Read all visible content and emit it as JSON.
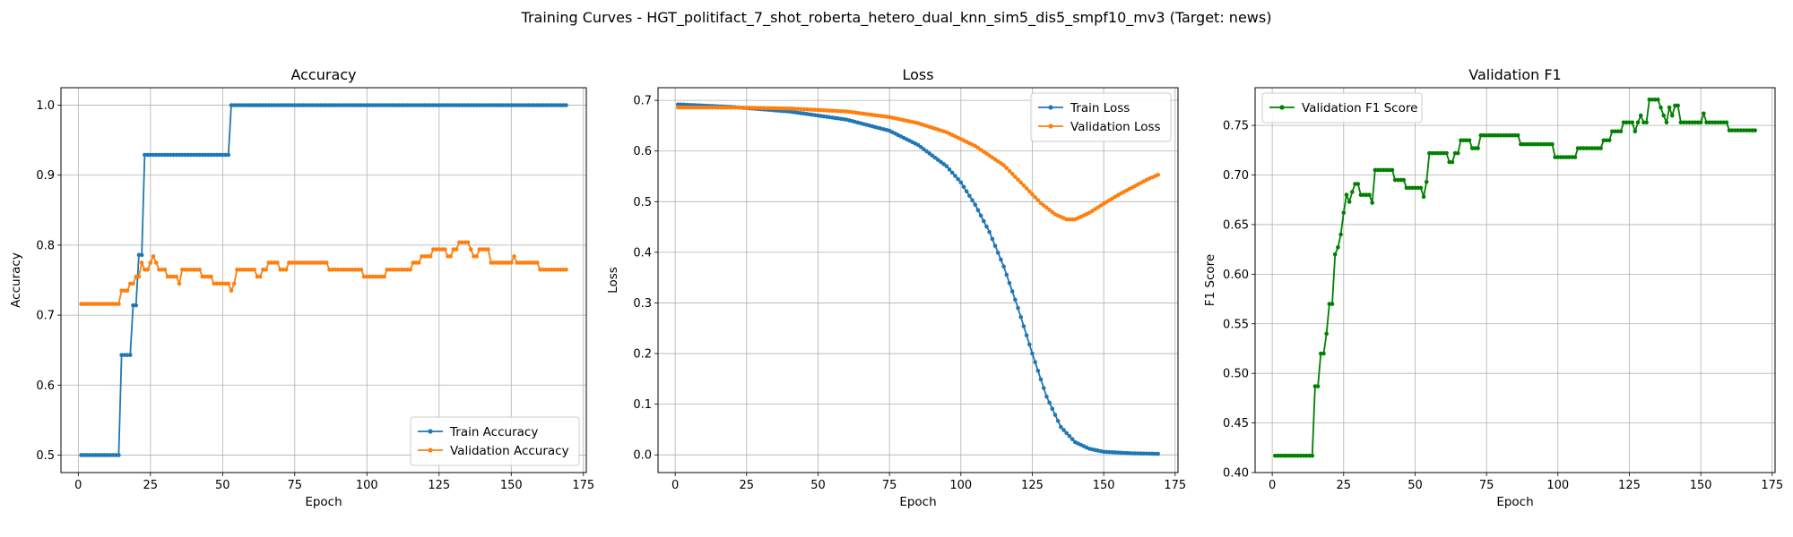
{
  "figure": {
    "suptitle": "Training Curves - HGT_politifact_7_shot_roberta_hetero_dual_knn_sim5_dis5_smpf10_mv3 (Target: news)"
  },
  "chart_data": [
    {
      "type": "line",
      "title": "Accuracy",
      "xlabel": "Epoch",
      "ylabel": "Accuracy",
      "xlim": [
        -6,
        176
      ],
      "ylim": [
        0.475,
        1.025
      ],
      "xticks": [
        0,
        25,
        50,
        75,
        100,
        125,
        150,
        175
      ],
      "yticks": [
        0.5,
        0.6,
        0.7,
        0.8,
        0.9,
        1.0
      ],
      "ytick_labels": [
        "0.5",
        "0.6",
        "0.7",
        "0.8",
        "0.9",
        "1.0"
      ],
      "grid": true,
      "legend_loc": "lower right",
      "series": [
        {
          "name": "Train Accuracy",
          "color": "#1f77b4",
          "x_range": [
            1,
            169
          ],
          "steps": [
            [
              1,
              0.5
            ],
            [
              15,
              0.643
            ],
            [
              19,
              0.714
            ],
            [
              21,
              0.786
            ],
            [
              23,
              0.929
            ],
            [
              53,
              1.0
            ]
          ]
        },
        {
          "name": "Validation Accuracy",
          "color": "#ff7f0e",
          "x_range": [
            1,
            169
          ],
          "steps": [
            [
              1,
              0.716
            ],
            [
              15,
              0.735
            ],
            [
              18,
              0.745
            ],
            [
              20,
              0.755
            ],
            [
              22,
              0.775
            ],
            [
              23,
              0.765
            ],
            [
              25,
              0.775
            ],
            [
              26,
              0.784
            ],
            [
              27,
              0.775
            ],
            [
              28,
              0.765
            ],
            [
              31,
              0.755
            ],
            [
              35,
              0.745
            ],
            [
              36,
              0.765
            ],
            [
              43,
              0.755
            ],
            [
              47,
              0.745
            ],
            [
              53,
              0.735
            ],
            [
              54,
              0.745
            ],
            [
              55,
              0.765
            ],
            [
              62,
              0.755
            ],
            [
              64,
              0.765
            ],
            [
              66,
              0.775
            ],
            [
              70,
              0.765
            ],
            [
              73,
              0.775
            ],
            [
              87,
              0.765
            ],
            [
              99,
              0.755
            ],
            [
              107,
              0.765
            ],
            [
              116,
              0.775
            ],
            [
              119,
              0.784
            ],
            [
              123,
              0.794
            ],
            [
              128,
              0.784
            ],
            [
              130,
              0.794
            ],
            [
              132,
              0.804
            ],
            [
              136,
              0.794
            ],
            [
              137,
              0.784
            ],
            [
              139,
              0.794
            ],
            [
              143,
              0.775
            ],
            [
              151,
              0.784
            ],
            [
              152,
              0.775
            ],
            [
              160,
              0.765
            ]
          ]
        }
      ]
    },
    {
      "type": "line",
      "title": "Loss",
      "xlabel": "Epoch",
      "ylabel": "Loss",
      "xlim": [
        -6,
        176
      ],
      "ylim": [
        -0.035,
        0.725
      ],
      "xticks": [
        0,
        25,
        50,
        75,
        100,
        125,
        150,
        175
      ],
      "yticks": [
        0.0,
        0.1,
        0.2,
        0.3,
        0.4,
        0.5,
        0.6,
        0.7
      ],
      "ytick_labels": [
        "0.0",
        "0.1",
        "0.2",
        "0.3",
        "0.4",
        "0.5",
        "0.6",
        "0.7"
      ],
      "grid": true,
      "legend_loc": "upper right",
      "series": [
        {
          "name": "Train Loss",
          "color": "#1f77b4",
          "x_range": [
            1,
            169
          ],
          "knots": [
            [
              1,
              0.692
            ],
            [
              20,
              0.687
            ],
            [
              40,
              0.678
            ],
            [
              60,
              0.662
            ],
            [
              75,
              0.64
            ],
            [
              85,
              0.612
            ],
            [
              95,
              0.57
            ],
            [
              100,
              0.538
            ],
            [
              105,
              0.494
            ],
            [
              110,
              0.44
            ],
            [
              115,
              0.372
            ],
            [
              120,
              0.29
            ],
            [
              125,
              0.2
            ],
            [
              130,
              0.115
            ],
            [
              135,
              0.055
            ],
            [
              140,
              0.025
            ],
            [
              145,
              0.012
            ],
            [
              150,
              0.006
            ],
            [
              160,
              0.003
            ],
            [
              169,
              0.002
            ]
          ]
        },
        {
          "name": "Validation Loss",
          "color": "#ff7f0e",
          "x_range": [
            1,
            169
          ],
          "knots": [
            [
              1,
              0.686
            ],
            [
              20,
              0.686
            ],
            [
              40,
              0.684
            ],
            [
              60,
              0.678
            ],
            [
              75,
              0.667
            ],
            [
              85,
              0.655
            ],
            [
              95,
              0.637
            ],
            [
              105,
              0.61
            ],
            [
              115,
              0.572
            ],
            [
              122,
              0.532
            ],
            [
              128,
              0.497
            ],
            [
              133,
              0.475
            ],
            [
              137,
              0.465
            ],
            [
              140,
              0.465
            ],
            [
              145,
              0.478
            ],
            [
              150,
              0.496
            ],
            [
              155,
              0.513
            ],
            [
              160,
              0.528
            ],
            [
              165,
              0.543
            ],
            [
              169,
              0.553
            ]
          ]
        }
      ]
    },
    {
      "type": "line",
      "title": "Validation F1",
      "xlabel": "Epoch",
      "ylabel": "F1 Score",
      "xlim": [
        -6,
        176
      ],
      "ylim": [
        0.4,
        0.788
      ],
      "xticks": [
        0,
        25,
        50,
        75,
        100,
        125,
        150,
        175
      ],
      "yticks": [
        0.4,
        0.45,
        0.5,
        0.55,
        0.6,
        0.65,
        0.7,
        0.75
      ],
      "ytick_labels": [
        "0.40",
        "0.45",
        "0.50",
        "0.55",
        "0.60",
        "0.65",
        "0.70",
        "0.75"
      ],
      "grid": true,
      "legend_loc": "upper left",
      "series": [
        {
          "name": "Validation F1 Score",
          "color": "#008000",
          "x_range": [
            1,
            169
          ],
          "steps": [
            [
              1,
              0.417
            ],
            [
              15,
              0.487
            ],
            [
              17,
              0.52
            ],
            [
              19,
              0.54
            ],
            [
              20,
              0.57
            ],
            [
              22,
              0.62
            ],
            [
              23,
              0.627
            ],
            [
              24,
              0.64
            ],
            [
              25,
              0.662
            ],
            [
              26,
              0.68
            ],
            [
              27,
              0.673
            ],
            [
              28,
              0.683
            ],
            [
              29,
              0.691
            ],
            [
              31,
              0.68
            ],
            [
              35,
              0.672
            ],
            [
              36,
              0.705
            ],
            [
              43,
              0.695
            ],
            [
              47,
              0.687
            ],
            [
              53,
              0.678
            ],
            [
              54,
              0.693
            ],
            [
              55,
              0.722
            ],
            [
              62,
              0.713
            ],
            [
              64,
              0.722
            ],
            [
              66,
              0.735
            ],
            [
              70,
              0.727
            ],
            [
              73,
              0.74
            ],
            [
              87,
              0.731
            ],
            [
              99,
              0.718
            ],
            [
              107,
              0.727
            ],
            [
              116,
              0.735
            ],
            [
              119,
              0.744
            ],
            [
              123,
              0.753
            ],
            [
              127,
              0.744
            ],
            [
              128,
              0.753
            ],
            [
              129,
              0.76
            ],
            [
              130,
              0.753
            ],
            [
              132,
              0.776
            ],
            [
              136,
              0.768
            ],
            [
              137,
              0.76
            ],
            [
              138,
              0.753
            ],
            [
              139,
              0.768
            ],
            [
              140,
              0.76
            ],
            [
              141,
              0.77
            ],
            [
              143,
              0.753
            ],
            [
              151,
              0.762
            ],
            [
              152,
              0.753
            ],
            [
              160,
              0.745
            ]
          ]
        }
      ]
    }
  ]
}
